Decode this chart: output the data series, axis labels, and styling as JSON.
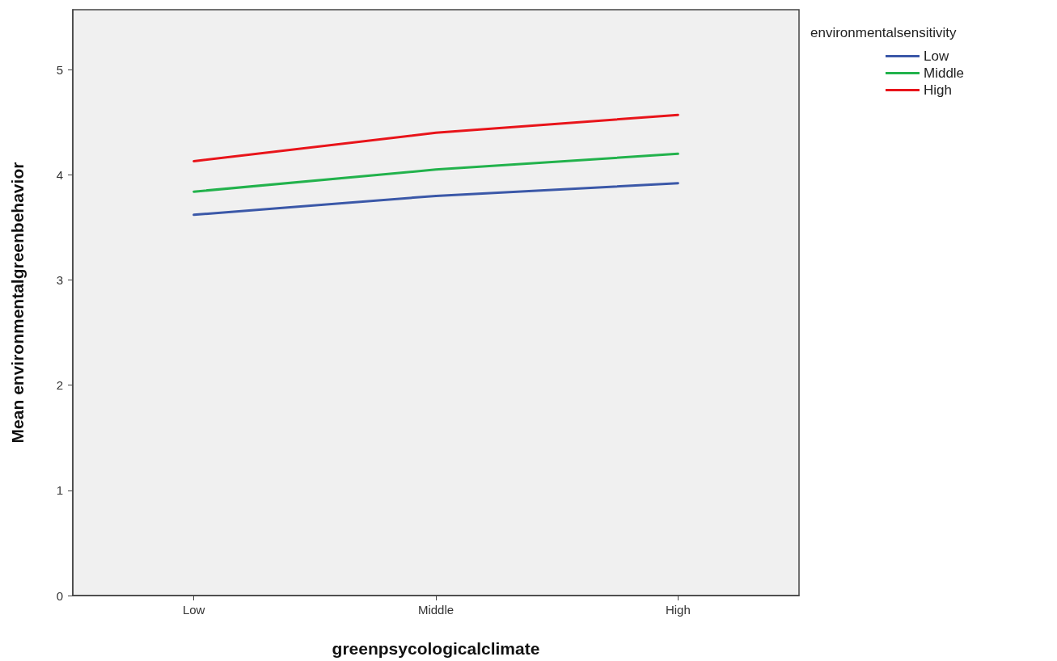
{
  "chart_data": {
    "type": "line",
    "xlabel": "greenpsycologicalclimate",
    "ylabel": "Mean environmentalgreenbehavior",
    "legend_title": "environmentalsensitivity",
    "categories": [
      "Low",
      "Middle",
      "High"
    ],
    "series": [
      {
        "name": "Low",
        "color": "#3b58a8",
        "values": [
          3.62,
          3.8,
          3.92
        ]
      },
      {
        "name": "Middle",
        "color": "#22b24c",
        "values": [
          3.84,
          4.05,
          4.2
        ]
      },
      {
        "name": "High",
        "color": "#e8141a",
        "values": [
          4.13,
          4.4,
          4.57
        ]
      }
    ],
    "ylim": [
      0,
      5.57
    ],
    "yticks": [
      0,
      1,
      2,
      3,
      4,
      5
    ],
    "grid": false,
    "legend": "top right",
    "marker": "none",
    "line_style": "solid"
  }
}
